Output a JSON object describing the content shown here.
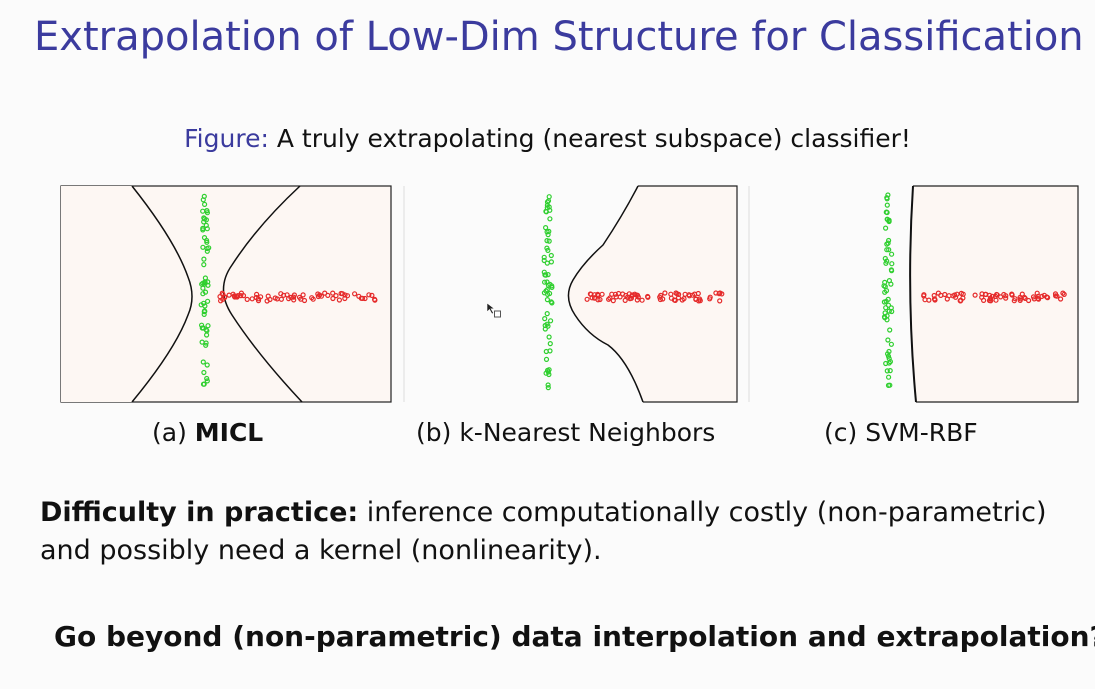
{
  "slide": {
    "title": "Extrapolation of Low-Dim Structure for Classification",
    "caption_label": "Figure:",
    "caption_text": " A truly extrapolating (nearest subspace) classifier!",
    "panels": [
      {
        "prefix": "(a) ",
        "name": "MICL",
        "bold": true
      },
      {
        "prefix": "(b) ",
        "name": "k-Nearest Neighbors",
        "bold": false
      },
      {
        "prefix": "(c) ",
        "name": "SVM-RBF",
        "bold": false
      }
    ],
    "difficulty_label": "Difficulty in practice:",
    "difficulty_text": " inference computationally costly (non-parametric) and possibly need a kernel (nonlinearity).",
    "question": "Go beyond (non-parametric) data interpolation and extrapolation?"
  },
  "colors": {
    "title": "#3b3b9e",
    "region_fill": "#fdf7f3",
    "green_points": "#2fcf2f",
    "red_points": "#e52a2a",
    "boundary": "#111111"
  },
  "chart_data": [
    {
      "type": "scatter",
      "title": "",
      "classes": [
        "vertical-line cluster (green)",
        "horizontal-line cluster (red)"
      ],
      "boundary": "hyperbolic nearest-subspace boundary"
    },
    {
      "type": "scatter",
      "title": "",
      "classes": [
        "vertical-line cluster (green)",
        "horizontal-line cluster (red)"
      ],
      "boundary": "k-NN boundary bending around green cluster"
    },
    {
      "type": "scatter",
      "title": "",
      "classes": [
        "vertical-line cluster (green)",
        "horizontal-line cluster (red)"
      ],
      "boundary": "near-vertical RBF boundary"
    }
  ]
}
